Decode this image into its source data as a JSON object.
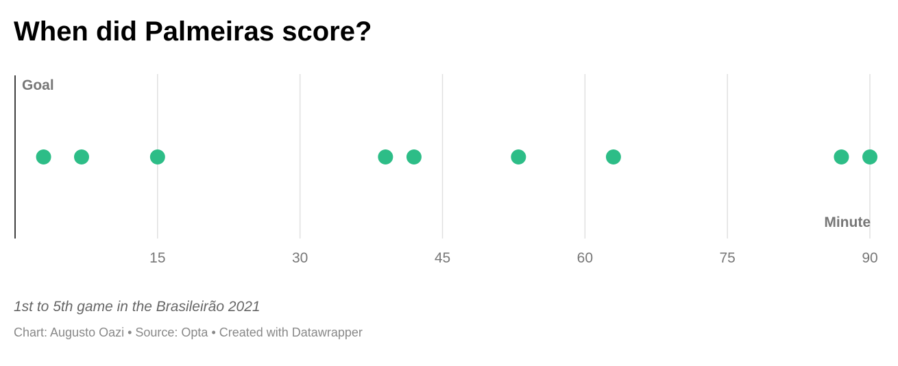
{
  "title": "When did Palmeiras score?",
  "description": "1st to 5th game in the Brasileirão 2021",
  "footer": "Chart: Augusto Oazi • Source: Opta • Created with Datawrapper",
  "colors": {
    "dot": "#2dbd87",
    "grid": "#e0e0e0",
    "axis": "#000000",
    "text_muted": "#777777"
  },
  "chart_data": {
    "type": "scatter",
    "title": "When did Palmeiras score?",
    "xlabel": "Minute",
    "ylabel": "Goal",
    "xlim": [
      0,
      90
    ],
    "x_ticks": [
      15,
      30,
      45,
      60,
      75,
      90
    ],
    "grid": true,
    "series": [
      {
        "x": [
          3,
          7,
          15,
          39,
          42,
          53,
          63,
          87,
          90
        ],
        "y": [
          1,
          1,
          1,
          1,
          1,
          1,
          1,
          1,
          1
        ]
      }
    ]
  }
}
